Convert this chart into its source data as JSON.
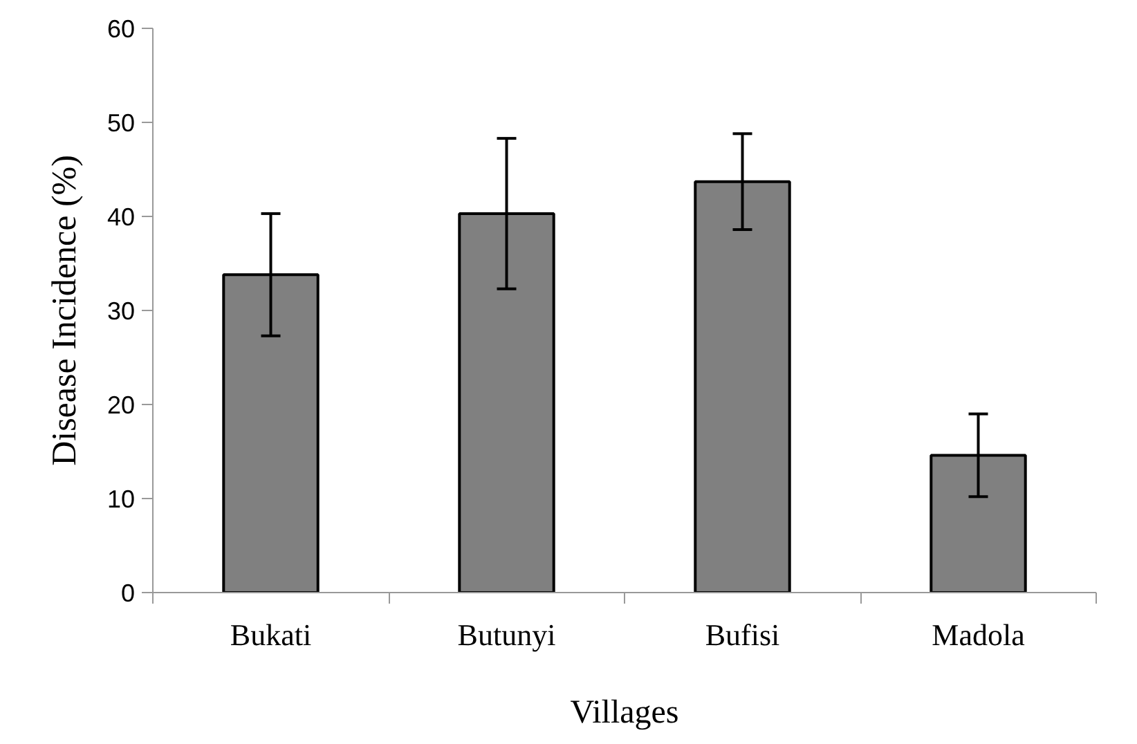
{
  "chart_data": {
    "type": "bar",
    "xlabel": "Villages",
    "ylabel": "Disease Incidence (%)",
    "categories": [
      "Bukati",
      "Butunyi",
      "Bufisi",
      "Madola"
    ],
    "values": [
      33.8,
      40.3,
      43.7,
      14.6
    ],
    "errors": [
      6.5,
      8,
      5.1,
      4.4
    ],
    "color": "#808080",
    "ylim": [
      0,
      60
    ],
    "yticks": [
      0,
      10,
      20,
      30,
      40,
      50,
      60
    ],
    "grid": false
  }
}
